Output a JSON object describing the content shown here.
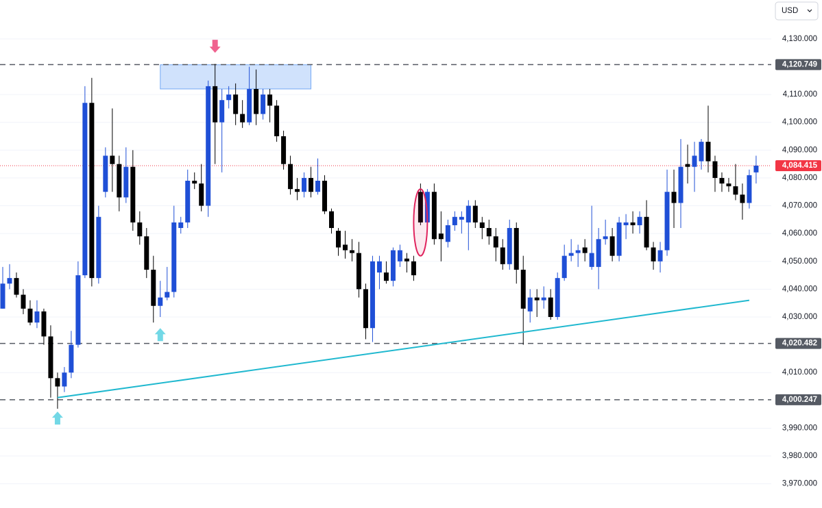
{
  "chart_data": {
    "type": "candlestick",
    "currency": "USD",
    "ylim": [
      3961.3,
      4144.0
    ],
    "yticks": [
      {
        "value": 4130,
        "label": "4,130.000"
      },
      {
        "value": 4110,
        "label": "4,110.000"
      },
      {
        "value": 4100,
        "label": "4,100.000"
      },
      {
        "value": 4090,
        "label": "4,090.000"
      },
      {
        "value": 4080,
        "label": "4,080.000"
      },
      {
        "value": 4070,
        "label": "4,070.000"
      },
      {
        "value": 4060,
        "label": "4,060.000"
      },
      {
        "value": 4050,
        "label": "4,050.000"
      },
      {
        "value": 4040,
        "label": "4,040.000"
      },
      {
        "value": 4030,
        "label": "4,030.000"
      },
      {
        "value": 4010,
        "label": "4,010.000"
      },
      {
        "value": 3990,
        "label": "3,990.000"
      },
      {
        "value": 3980,
        "label": "3,980.000"
      },
      {
        "value": 3970,
        "label": "3,970.000"
      }
    ],
    "grid": true,
    "up_color": "#1f4fd6",
    "down_color": "#000000",
    "open": [
      4033,
      4042,
      4044,
      4038,
      4033,
      4028,
      4032,
      4023,
      4008,
      4005,
      4010,
      4020,
      4045,
      4107,
      4044,
      4075,
      4088,
      4085,
      4073,
      4084,
      4064,
      4059,
      4047,
      4034,
      4037,
      4039,
      4062,
      4064,
      4079,
      4078,
      4070,
      4113,
      4100,
      4108,
      4110,
      4103,
      4100,
      4112,
      4103,
      4110,
      4106,
      4095,
      4085,
      4076,
      4075,
      4080,
      4075,
      4079,
      4068,
      4061,
      4056,
      4054,
      4053,
      4040,
      4026,
      4046,
      4046,
      4043,
      4050,
      4051,
      4050,
      4075,
      4064,
      4075,
      4060,
      4057,
      4063,
      4065,
      4064,
      4070,
      4064,
      4062,
      4059,
      4055,
      4049,
      4062,
      4047,
      4032,
      4037,
      4036,
      4037,
      4030,
      4044,
      4052,
      4053,
      4055,
      4048,
      4048,
      4058,
      4059,
      4052,
      4063,
      4064,
      4063,
      4066,
      4055,
      4050,
      4054,
      4075,
      4071,
      4085,
      4084,
      4086,
      4093,
      4086,
      4080,
      4078,
      4077,
      4074,
      4071,
      4082
    ],
    "high": [
      4048,
      4049,
      4046,
      4040,
      4036,
      4036,
      4033,
      4027,
      4010,
      4012,
      4025,
      4050,
      4113,
      4116,
      4070,
      4091,
      4105,
      4088,
      4091,
      4090,
      4068,
      4062,
      4052,
      4043,
      4048,
      4070,
      4066,
      4083,
      4082,
      4085,
      4115,
      4121,
      4112,
      4113,
      4114,
      4108,
      4120,
      4119,
      4112,
      4112,
      4108,
      4097,
      4088,
      4080,
      4082,
      4084,
      4087,
      4081,
      4069,
      4062,
      4061,
      4058,
      4057,
      4042,
      4052,
      4052,
      4050,
      4055,
      4056,
      4053,
      4052,
      4078,
      4076,
      4078,
      4068,
      4065,
      4068,
      4068,
      4072,
      4072,
      4066,
      4065,
      4062,
      4058,
      4065,
      4064,
      4052,
      4040,
      4040,
      4041,
      4040,
      4046,
      4056,
      4058,
      4056,
      4058,
      4070,
      4062,
      4065,
      4062,
      4066,
      4067,
      4068,
      4068,
      4072,
      4057,
      4057,
      4083,
      4083,
      4094,
      4092,
      4093,
      4094,
      4106,
      4088,
      4082,
      4080,
      4085,
      4078,
      4083,
      4088
    ],
    "low": [
      4033,
      4040,
      4037,
      4031,
      4027,
      4026,
      4020,
      4001,
      3997,
      4003,
      4008,
      4019,
      4044,
      4041,
      4042,
      4073,
      4075,
      4068,
      4071,
      4061,
      4056,
      4044,
      4028,
      4030,
      4036,
      4037,
      4060,
      4062,
      4076,
      4068,
      4066,
      4085,
      4082,
      4105,
      4099,
      4098,
      4099,
      4099,
      4101,
      4100,
      4093,
      4083,
      4074,
      4072,
      4073,
      4073,
      4074,
      4067,
      4060,
      4052,
      4051,
      4050,
      4037,
      4022,
      4021,
      4040,
      4042,
      4041,
      4048,
      4046,
      4043,
      4063,
      4063,
      4056,
      4050,
      4055,
      4061,
      4060,
      4054,
      4062,
      4058,
      4056,
      4050,
      4047,
      4047,
      4042,
      4020,
      4028,
      4030,
      4033,
      4029,
      4029,
      4043,
      4050,
      4048,
      4050,
      4047,
      4040,
      4056,
      4050,
      4050,
      4058,
      4060,
      4060,
      4054,
      4047,
      4046,
      4052,
      4062,
      4062,
      4078,
      4075,
      4083,
      4082,
      4075,
      4075,
      4075,
      4072,
      4065,
      4069,
      4078
    ],
    "close": [
      4042,
      4044,
      4038,
      4033,
      4028,
      4032,
      4023,
      4008,
      4005,
      4010,
      4020,
      4045,
      4107,
      4044,
      4066,
      4088,
      4085,
      4073,
      4084,
      4064,
      4059,
      4047,
      4034,
      4037,
      4039,
      4064,
      4064,
      4079,
      4078,
      4070,
      4113,
      4100,
      4108,
      4110,
      4103,
      4100,
      4112,
      4103,
      4110,
      4106,
      4095,
      4085,
      4076,
      4075,
      4080,
      4075,
      4079,
      4068,
      4062,
      4055,
      4054,
      4053,
      4040,
      4026,
      4050,
      4050,
      4043,
      4054,
      4054,
      4050,
      4045,
      4064,
      4075,
      4058,
      4058,
      4063,
      4066,
      4066,
      4070,
      4064,
      4062,
      4059,
      4055,
      4049,
      4062,
      4047,
      4033,
      4037,
      4036,
      4037,
      4030,
      4044,
      4052,
      4053,
      4054,
      4053,
      4053,
      4058,
      4059,
      4052,
      4064,
      4064,
      4063,
      4066,
      4055,
      4050,
      4054,
      4075,
      4071,
      4084,
      4084,
      4088,
      4093,
      4086,
      4080,
      4078,
      4077,
      4074,
      4071,
      4081,
      4084.415
    ],
    "levels": [
      {
        "value": 4120.749,
        "label": "4,120.749"
      },
      {
        "value": 4020.482,
        "label": "4,020.482"
      },
      {
        "value": 4000.247,
        "label": "4,000.247"
      }
    ],
    "level_color": "#555a63",
    "last_price": {
      "value": 4084.415,
      "label": "4,084.415"
    },
    "last_price_color": "#f23645",
    "trendline": {
      "from": {
        "index": 8,
        "price": 4001
      },
      "to": {
        "index": 109,
        "price": 4036
      },
      "color": "#1fb8cf"
    },
    "zone": {
      "from_index": 23,
      "to_index": 45,
      "top": 4120.7,
      "bottom": 4112,
      "color": "#2a7bf0"
    },
    "arrows": [
      {
        "index": 31,
        "price": 4125,
        "direction": "down",
        "color": "#f0628f"
      },
      {
        "index": 23,
        "price": 4026,
        "direction": "up",
        "color": "#72d8e6"
      },
      {
        "index": 8,
        "price": 3996,
        "direction": "up",
        "color": "#72d8e6"
      }
    ],
    "ellipse": {
      "index": 61,
      "top": 4076,
      "bottom": 4052,
      "color": "#e0245e"
    }
  }
}
